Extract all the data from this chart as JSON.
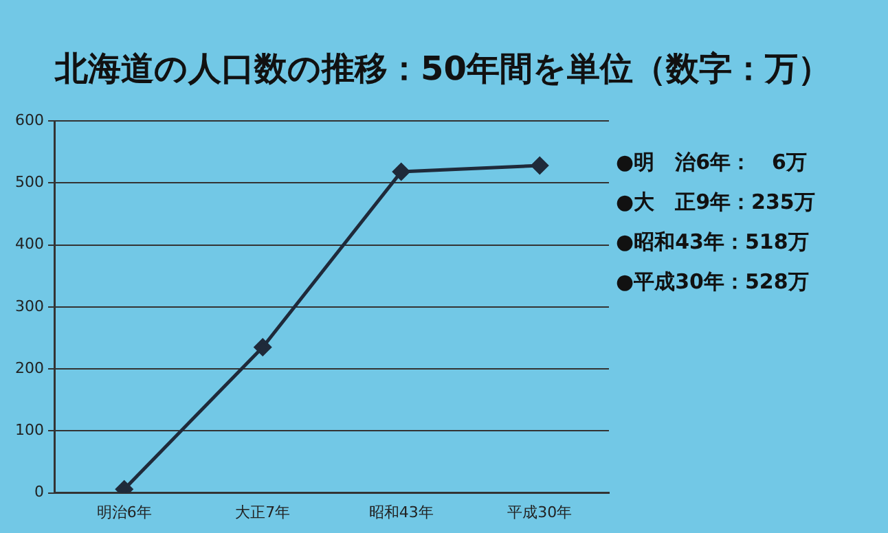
{
  "chart_data": {
    "type": "line",
    "title": "北海道の人口数の推移：50年間を単位（数字：万）",
    "categories": [
      "明治6年",
      "大正7年",
      "昭和43年",
      "平成30年"
    ],
    "series": [
      {
        "color": "#1f2a3a",
        "values": [
          6,
          235,
          518,
          528
        ]
      }
    ],
    "ylim": [
      0,
      600
    ],
    "yticks": [
      0,
      100,
      200,
      300,
      400,
      500,
      600
    ],
    "grid": "y",
    "marker": "diamond",
    "line_style": "solid",
    "legend": false,
    "annotations": [
      "●明　治6年：　6万",
      "●大　正9年：235万",
      "●昭和43年：518万",
      "●平成30年：528万"
    ]
  }
}
